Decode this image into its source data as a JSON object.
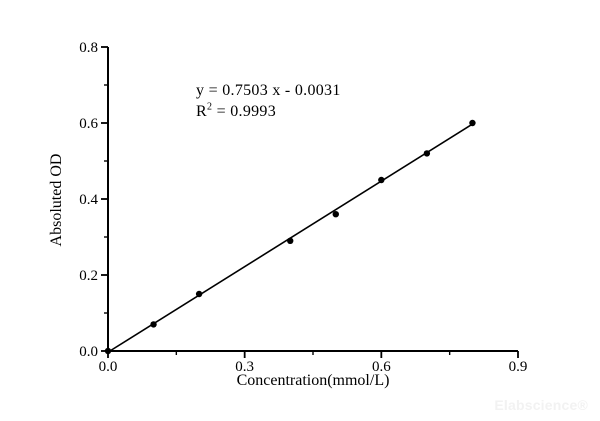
{
  "watermark": {
    "text": "Elabscience®",
    "color": "#f2f2f2"
  },
  "annotation": {
    "equation": "y = 0.7503 x - 0.0031",
    "r2_base": "R",
    "r2_sup": "2",
    "r2_rest": " = 0.9993"
  },
  "chart_data": {
    "type": "scatter",
    "xlabel": "Concentration(mmol/L)",
    "ylabel": "Absoluted OD",
    "xlim": [
      0,
      0.9
    ],
    "ylim": [
      0,
      0.8
    ],
    "x_major_ticks": [
      0,
      0.3,
      0.6,
      0.9
    ],
    "x_tick_labels": [
      "0.0",
      "0.3",
      "0.6",
      "0.9"
    ],
    "x_minor_step": 0.15,
    "y_major_ticks": [
      0,
      0.2,
      0.4,
      0.6,
      0.8
    ],
    "y_tick_labels": [
      "0.0",
      "0.2",
      "0.4",
      "0.6",
      "0.8"
    ],
    "y_minor_step": 0.1,
    "grid": false,
    "legend": null,
    "axis_color": "#000000",
    "line_color": "#000000",
    "marker_color": "#000000",
    "points": {
      "x": [
        0,
        0.1,
        0.2,
        0.4,
        0.5,
        0.6,
        0.7,
        0.8
      ],
      "y": [
        0,
        0.07,
        0.15,
        0.29,
        0.36,
        0.45,
        0.52,
        0.6
      ]
    },
    "fit_line": {
      "slope": 0.7503,
      "intercept": -0.0031,
      "x_start": 0,
      "x_end": 0.8
    },
    "equation_text": "y = 0.7503 x - 0.0031",
    "r_squared_text": "R² = 0.9993"
  }
}
